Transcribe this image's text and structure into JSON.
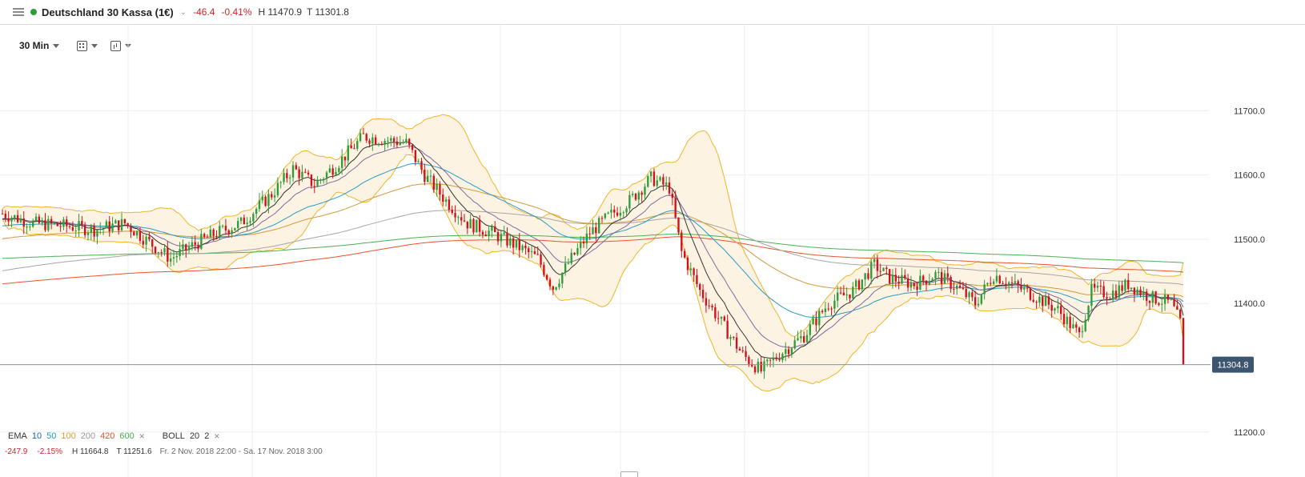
{
  "header": {
    "title": "Deutschland 30 Kassa (1€)",
    "change": "-46.4",
    "change_pct": "-0.41%",
    "high": "H 11470.9",
    "low": "T 11301.8",
    "status_color": "#2e9e3a"
  },
  "toolbar": {
    "timeframe": "30 Min"
  },
  "chart_data": {
    "type": "candlestick",
    "y_ticks": [
      "11700.0",
      "11600.0",
      "11500.0",
      "11400.0",
      "11200.0"
    ],
    "ylim": [
      11130,
      11835
    ],
    "last_price": "11304.8",
    "grid": true,
    "price_anchors": [
      [
        0,
        11540
      ],
      [
        10,
        11525
      ],
      [
        22,
        11520
      ],
      [
        30,
        11515
      ],
      [
        40,
        11525
      ],
      [
        48,
        11495
      ],
      [
        55,
        11470
      ],
      [
        62,
        11490
      ],
      [
        70,
        11510
      ],
      [
        78,
        11525
      ],
      [
        88,
        11570
      ],
      [
        95,
        11610
      ],
      [
        102,
        11585
      ],
      [
        110,
        11620
      ],
      [
        118,
        11660
      ],
      [
        125,
        11655
      ],
      [
        132,
        11650
      ],
      [
        138,
        11600
      ],
      [
        145,
        11560
      ],
      [
        152,
        11525
      ],
      [
        160,
        11510
      ],
      [
        168,
        11490
      ],
      [
        175,
        11470
      ],
      [
        180,
        11425
      ],
      [
        186,
        11470
      ],
      [
        192,
        11510
      ],
      [
        198,
        11535
      ],
      [
        205,
        11560
      ],
      [
        212,
        11595
      ],
      [
        218,
        11580
      ],
      [
        222,
        11480
      ],
      [
        228,
        11420
      ],
      [
        235,
        11370
      ],
      [
        242,
        11320
      ],
      [
        248,
        11295
      ],
      [
        255,
        11325
      ],
      [
        262,
        11350
      ],
      [
        270,
        11400
      ],
      [
        278,
        11420
      ],
      [
        285,
        11460
      ],
      [
        290,
        11440
      ],
      [
        298,
        11430
      ],
      [
        305,
        11445
      ],
      [
        312,
        11425
      ],
      [
        318,
        11400
      ],
      [
        324,
        11445
      ],
      [
        330,
        11430
      ],
      [
        338,
        11410
      ],
      [
        345,
        11390
      ],
      [
        352,
        11350
      ],
      [
        356,
        11420
      ],
      [
        362,
        11415
      ],
      [
        368,
        11430
      ],
      [
        375,
        11410
      ],
      [
        382,
        11400
      ],
      [
        386,
        11360
      ]
    ],
    "legend": {
      "ema_label": "EMA",
      "ema_periods": [
        {
          "value": "10",
          "color": "#1f5fb4"
        },
        {
          "value": "50",
          "color": "#1f9fc8"
        },
        {
          "value": "100",
          "color": "#e59a1f"
        },
        {
          "value": "200",
          "color": "#9a9a9a"
        },
        {
          "value": "420",
          "color": "#e8532c"
        },
        {
          "value": "600",
          "color": "#4caf50"
        }
      ],
      "boll_label": "BOLL",
      "boll_period": "20",
      "boll_dev": "2",
      "close_glyph": "×"
    },
    "footer": {
      "change": "-247.9",
      "change_pct": "-2.15%",
      "high": "H 11664.8",
      "low": "T 11251.6",
      "range": "Fr. 2 Nov. 2018 22:00 - Sa. 17 Nov. 2018 3:00"
    },
    "colors": {
      "up": "#2e9e3a",
      "down": "#d0111b",
      "band": "#f0b429",
      "band_fill": "#fdf3e2",
      "ema_short": "#333333",
      "ema_mid": "#7d6aa0",
      "ema_50": "#2a9bc4",
      "ema_100": "#d39a3a",
      "ema_200": "#a6a6a6",
      "ema_420": "#e8532c",
      "ema_600": "#4caf50",
      "price_line": "#7b95b0",
      "price_tag": "#3c5670"
    }
  }
}
